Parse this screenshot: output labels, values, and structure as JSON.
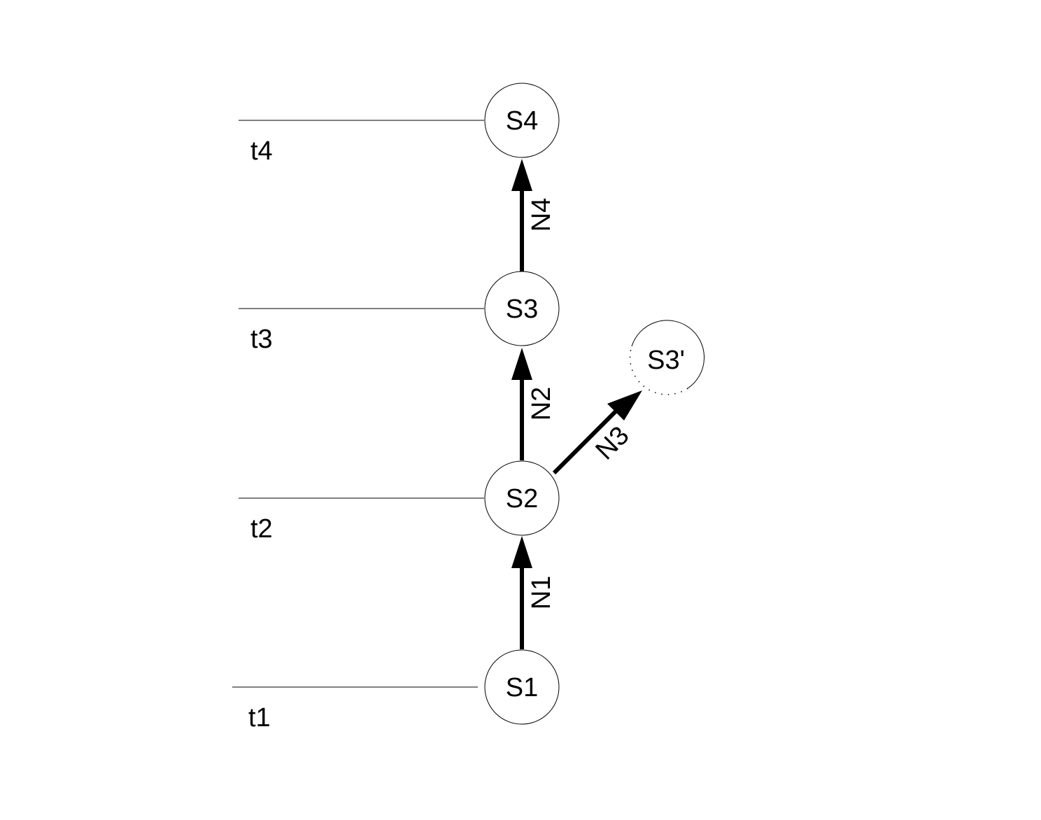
{
  "diagram": {
    "time_labels": [
      "t4",
      "t3",
      "t2",
      "t1"
    ],
    "nodes": [
      {
        "id": "S4",
        "label": "S4",
        "style": "solid"
      },
      {
        "id": "S3",
        "label": "S3",
        "style": "solid"
      },
      {
        "id": "S2",
        "label": "S2",
        "style": "solid"
      },
      {
        "id": "S1",
        "label": "S1",
        "style": "solid"
      },
      {
        "id": "S3p",
        "label": "S3'",
        "style": "dotted"
      }
    ],
    "edges": [
      {
        "from": "S1",
        "to": "S2",
        "label": "N1"
      },
      {
        "from": "S2",
        "to": "S3",
        "label": "N2"
      },
      {
        "from": "S2",
        "to": "S3p",
        "label": "N3"
      },
      {
        "from": "S3",
        "to": "S4",
        "label": "N4"
      }
    ]
  }
}
